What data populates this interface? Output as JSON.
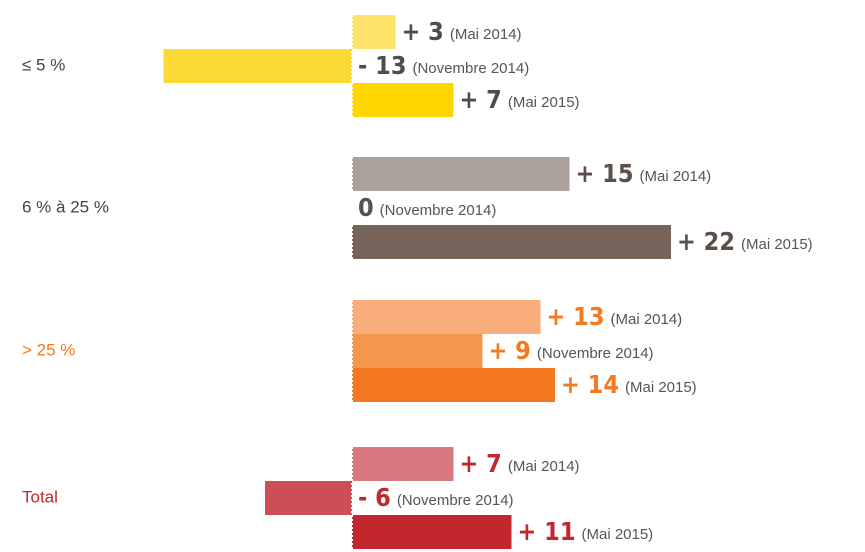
{
  "chart_data": {
    "type": "bar",
    "orientation": "horizontal",
    "categories": [
      "≤ 5 %",
      "6 % à 25 %",
      "> 25 %",
      "Total"
    ],
    "category_colors": [
      "#444444",
      "#444444",
      "#f47920",
      "#c1272d"
    ],
    "label_colors": [
      "#4d4d4d",
      "#5b4f49",
      "#f47920",
      "#c1272d"
    ],
    "series": [
      {
        "name": "(Mai 2014)",
        "colors": [
          "#fde36a",
          "#aba09b",
          "#f8ad7a",
          "#d9797f"
        ],
        "values": [
          3,
          15,
          13,
          7
        ],
        "value_labels": [
          "+ 3",
          "+ 15",
          "+ 13",
          "+ 7"
        ]
      },
      {
        "name": "(Novembre 2014)",
        "colors": [
          "#fcd935",
          "#8e8079",
          "#f5964f",
          "#cd4e55"
        ],
        "values": [
          -13,
          0,
          9,
          -6
        ],
        "value_labels": [
          "- 13",
          "0",
          "+ 9",
          "- 6"
        ]
      },
      {
        "name": "(Mai 2015)",
        "colors": [
          "#ffd600",
          "#76645b",
          "#f47920",
          "#c1272d"
        ],
        "values": [
          7,
          22,
          14,
          11
        ],
        "value_labels": [
          "+ 7",
          "+ 22",
          "+ 14",
          "+ 11"
        ]
      }
    ],
    "xlim": [
      -24,
      35
    ]
  }
}
